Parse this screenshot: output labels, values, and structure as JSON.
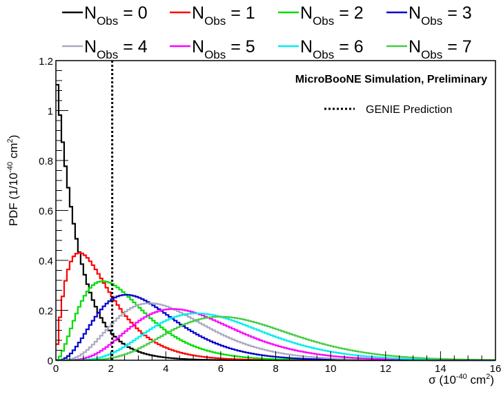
{
  "chart_data": {
    "type": "line",
    "xlabel": {
      "base": "σ (10",
      "sup1": "-40",
      "mid": " cm",
      "sup2": "2",
      "end": ")"
    },
    "ylabel": {
      "base": "PDF (1/10",
      "sup1": "-40",
      "mid": " cm",
      "sup2": "2",
      "end": ")"
    },
    "xlim": [
      0,
      16
    ],
    "ylim": [
      0,
      1.2
    ],
    "xticks": [
      0,
      2,
      4,
      6,
      8,
      10,
      12,
      14,
      16
    ],
    "yticks": [
      0,
      0.2,
      0.4,
      0.6,
      0.8,
      1,
      1.2
    ],
    "xtick_labels": [
      "0",
      "2",
      "4",
      "6",
      "8",
      "10",
      "12",
      "14",
      "16"
    ],
    "ytick_labels": [
      "0",
      "0.2",
      "0.4",
      "0.6",
      "0.8",
      "1",
      "1.2"
    ],
    "grid": false,
    "legend_position": "top-outside",
    "annotation": "MicroBooNE Simulation, Preliminary",
    "prediction": {
      "label": "GENIE Prediction",
      "x": 2.05,
      "style": "dotted",
      "color": "#000000"
    },
    "distribution": {
      "family": "gamma",
      "rate_per_unit_sigma": 1.17
    },
    "series": [
      {
        "n": "0",
        "name_base": "N",
        "name_sub": "Obs",
        "name_value": " = 0",
        "color": "#000000"
      },
      {
        "n": "1",
        "name_base": "N",
        "name_sub": "Obs",
        "name_value": " = 1",
        "color": "#ff0000"
      },
      {
        "n": "2",
        "name_base": "N",
        "name_sub": "Obs",
        "name_value": " = 2",
        "color": "#00dd00"
      },
      {
        "n": "3",
        "name_base": "N",
        "name_sub": "Obs",
        "name_value": " = 3",
        "color": "#0000cc"
      },
      {
        "n": "4",
        "name_base": "N",
        "name_sub": "Obs",
        "name_value": " = 4",
        "color": "#a9a9c2"
      },
      {
        "n": "5",
        "name_base": "N",
        "name_sub": "Obs",
        "name_value": " = 5",
        "color": "#ff00ff"
      },
      {
        "n": "6",
        "name_base": "N",
        "name_sub": "Obs",
        "name_value": " = 6",
        "color": "#00eeee"
      },
      {
        "n": "7",
        "name_base": "N",
        "name_sub": "Obs",
        "name_value": " = 7",
        "color": "#44cc44"
      }
    ]
  }
}
